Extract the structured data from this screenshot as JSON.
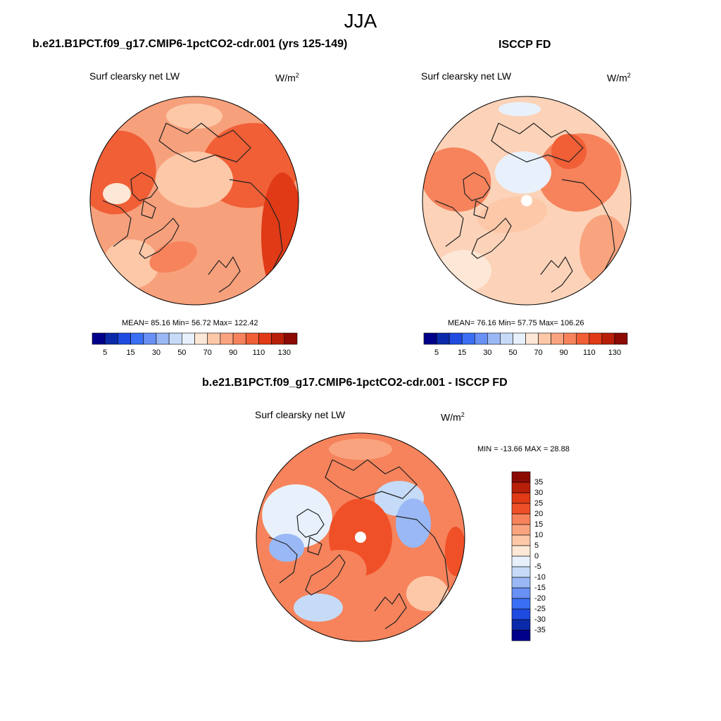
{
  "page": {
    "title": "JJA"
  },
  "panels": [
    {
      "id": "model",
      "title": "b.e21.B1PCT.f09_g17.CMIP6-1pctCO2-cdr.001 (yrs 125-149)",
      "subtitle": "Surf clearsky net LW",
      "units_base": "W/m",
      "units_exp": "2",
      "stats": "MEAN=  85.16  Min=  56.72  Max= 122.42"
    },
    {
      "id": "obs",
      "title": "ISCCP FD",
      "subtitle": "Surf clearsky net LW",
      "units_base": "W/m",
      "units_exp": "2",
      "stats": "MEAN=  76.16  Min=  57.75  Max= 106.26"
    },
    {
      "id": "diff",
      "title": "b.e21.B1PCT.f09_g17.CMIP6-1pctCO2-cdr.001 - ISCCP FD",
      "subtitle": "Surf clearsky net LW",
      "units_base": "W/m",
      "units_exp": "2",
      "stats": "MIN = -13.66 MAX =  28.88"
    }
  ],
  "colorbars": {
    "absolute": {
      "colors": [
        "#00008b",
        "#0b2aaa",
        "#1f4be0",
        "#3a6ff5",
        "#6890f5",
        "#9ab8f5",
        "#c6dbf7",
        "#e8f1fb",
        "#fde7d6",
        "#fcc8a8",
        "#f9a47f",
        "#f6835c",
        "#f05f36",
        "#e03a16",
        "#b81f08",
        "#8b0b04"
      ],
      "tick_labels": [
        "5",
        "15",
        "30",
        "50",
        "70",
        "90",
        "110",
        "130"
      ]
    },
    "difference": {
      "colors": [
        "#8b0b04",
        "#b81f08",
        "#e03a16",
        "#f05028",
        "#f6835c",
        "#f9a47f",
        "#fcc8a8",
        "#fde7d6",
        "#e8f1fb",
        "#c6dbf7",
        "#9ab8f5",
        "#6890f5",
        "#3a6ff5",
        "#1f4be0",
        "#0b2aaa",
        "#00008b"
      ],
      "tick_labels": [
        "35",
        "30",
        "25",
        "20",
        "15",
        "10",
        "5",
        "0",
        "-5",
        "-10",
        "-15",
        "-20",
        "-25",
        "-30",
        "-35"
      ]
    }
  },
  "map_colors": {
    "model_base": "#f7a07c",
    "obs_base": "#fcd3b8",
    "diff_base": "#f6835c",
    "coastline": "#222222",
    "polar_hole": "#ffffff"
  }
}
